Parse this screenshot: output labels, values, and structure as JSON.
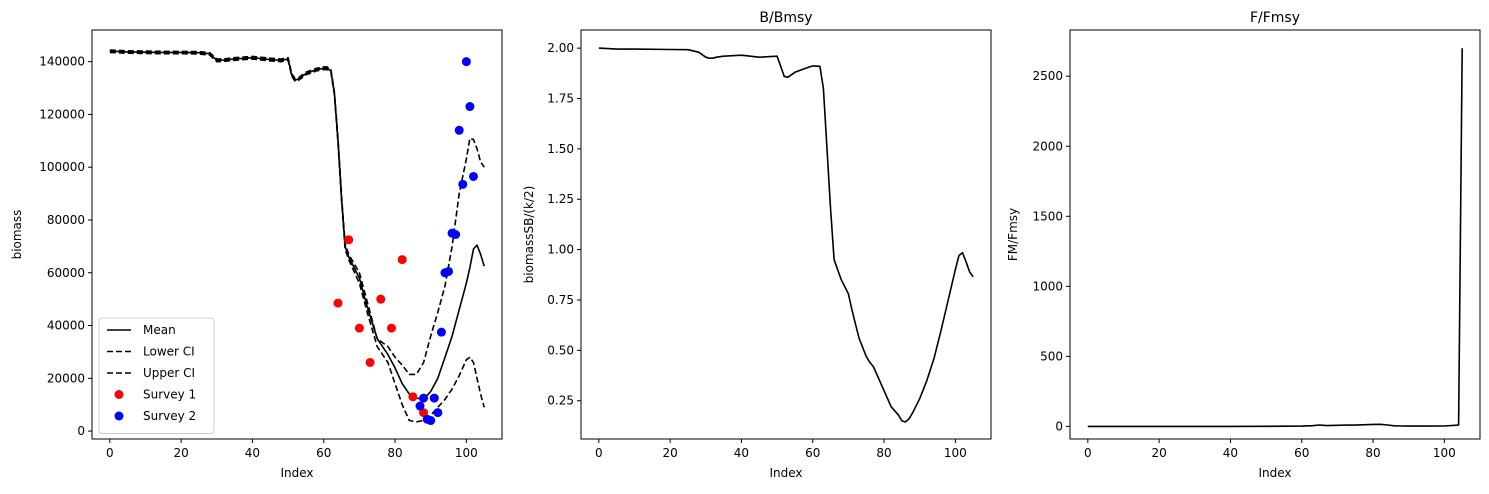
{
  "chart_data": [
    {
      "type": "line",
      "title": "",
      "xlabel": "Index",
      "ylabel": "biomass",
      "xlim": [
        -5,
        110
      ],
      "ylim": [
        -3000,
        152000
      ],
      "xticks": [
        0,
        20,
        40,
        60,
        80,
        100
      ],
      "yticks": [
        0,
        20000,
        40000,
        60000,
        80000,
        100000,
        120000,
        140000
      ],
      "legend_position": "lower-left",
      "series": [
        {
          "name": "Mean",
          "style": "solid",
          "color": "#000000",
          "x": [
            0,
            5,
            10,
            15,
            20,
            25,
            28,
            30,
            32,
            35,
            40,
            45,
            48,
            50,
            51,
            52,
            53,
            55,
            58,
            60,
            61,
            62,
            63,
            64,
            65,
            66,
            67,
            70,
            72,
            75,
            78,
            80,
            82,
            84,
            86,
            88,
            90,
            92,
            94,
            96,
            98,
            100,
            101,
            102,
            103,
            104,
            105
          ],
          "y": [
            144000,
            143700,
            143600,
            143500,
            143500,
            143400,
            143000,
            140500,
            140600,
            141000,
            141500,
            140800,
            140500,
            141000,
            135000,
            133000,
            133500,
            135500,
            137000,
            137500,
            137500,
            136500,
            128000,
            110000,
            88000,
            70000,
            66000,
            58000,
            48000,
            35000,
            29000,
            24000,
            18000,
            14000,
            12500,
            12000,
            15000,
            20000,
            28000,
            36000,
            46000,
            56000,
            62000,
            69000,
            70500,
            67000,
            62500
          ]
        },
        {
          "name": "Lower CI",
          "style": "dashed",
          "color": "#000000",
          "x": [
            0,
            5,
            10,
            15,
            20,
            25,
            28,
            30,
            32,
            35,
            40,
            45,
            48,
            50,
            51,
            52,
            53,
            55,
            58,
            60,
            61,
            62,
            63,
            64,
            65,
            66,
            67,
            70,
            72,
            75,
            78,
            80,
            82,
            84,
            86,
            88,
            90,
            92,
            94,
            96,
            98,
            100,
            101,
            102,
            103,
            104,
            105
          ],
          "y": [
            143500,
            143200,
            143100,
            143000,
            143000,
            142900,
            142500,
            140000,
            140100,
            140500,
            141000,
            140300,
            140000,
            140500,
            134500,
            132500,
            133000,
            135000,
            136500,
            137000,
            137000,
            136000,
            127500,
            109000,
            87000,
            69000,
            65000,
            56000,
            46000,
            32000,
            26000,
            18000,
            10000,
            4000,
            3500,
            4000,
            6000,
            9000,
            12000,
            16000,
            21000,
            27000,
            28000,
            26000,
            20000,
            14000,
            9000
          ]
        },
        {
          "name": "Upper CI",
          "style": "dashed",
          "color": "#000000",
          "x": [
            0,
            5,
            10,
            15,
            20,
            25,
            28,
            30,
            32,
            35,
            40,
            45,
            48,
            50,
            51,
            52,
            53,
            55,
            58,
            60,
            61,
            62,
            63,
            64,
            65,
            66,
            67,
            70,
            72,
            75,
            78,
            80,
            82,
            84,
            86,
            88,
            90,
            92,
            94,
            96,
            98,
            100,
            101,
            102,
            103,
            104,
            105
          ],
          "y": [
            144400,
            144100,
            144000,
            143900,
            143900,
            143800,
            143400,
            141000,
            141100,
            141500,
            142000,
            141300,
            141000,
            141500,
            135500,
            133500,
            134000,
            136000,
            137500,
            138000,
            138000,
            137000,
            128500,
            111000,
            89000,
            71000,
            67000,
            60000,
            50000,
            35000,
            32000,
            28000,
            25000,
            21500,
            21500,
            26000,
            36000,
            45000,
            55000,
            70000,
            90000,
            103000,
            111000,
            110500,
            107000,
            102000,
            100000
          ]
        },
        {
          "name": "Survey 1",
          "style": "scatter",
          "color": "#ff0000",
          "x": [
            64,
            67,
            70,
            73,
            76,
            79,
            82,
            85,
            88
          ],
          "y": [
            48500,
            72500,
            39000,
            26000,
            50000,
            39000,
            65000,
            13000,
            7000
          ]
        },
        {
          "name": "Survey 2",
          "style": "scatter",
          "color": "#0000ff",
          "x": [
            87,
            88,
            89,
            90,
            91,
            92,
            93,
            94,
            95,
            96,
            97,
            98,
            99,
            100,
            101,
            102
          ],
          "y": [
            9500,
            12500,
            4500,
            4000,
            12500,
            7000,
            37500,
            60000,
            60500,
            75000,
            74500,
            114000,
            93500,
            140000,
            123000,
            96500
          ]
        }
      ]
    },
    {
      "type": "line",
      "title": "B/Bmsy",
      "xlabel": "Index",
      "ylabel": "biomassSB/(k/2)",
      "xlim": [
        -5,
        110
      ],
      "ylim": [
        0.06,
        2.09
      ],
      "xticks": [
        0,
        20,
        40,
        60,
        80,
        100
      ],
      "yticks": [
        0.25,
        0.5,
        0.75,
        1.0,
        1.25,
        1.5,
        1.75,
        2.0
      ],
      "ytick_labels": [
        "0.25",
        "0.50",
        "0.75",
        "1.00",
        "1.25",
        "1.50",
        "1.75",
        "2.00"
      ],
      "series": [
        {
          "name": "",
          "style": "solid",
          "color": "#000000",
          "x": [
            0,
            5,
            10,
            20,
            25,
            28,
            30,
            31,
            32,
            33,
            35,
            40,
            45,
            48,
            50,
            51,
            52,
            53,
            55,
            58,
            60,
            62,
            63,
            64,
            65,
            66,
            67,
            68,
            70,
            71,
            72,
            73,
            75,
            76,
            77,
            78,
            80,
            82,
            84,
            85,
            86,
            87,
            88,
            90,
            92,
            94,
            96,
            98,
            100,
            101,
            102,
            103,
            104,
            105
          ],
          "y": [
            2.0,
            1.995,
            1.995,
            1.993,
            1.992,
            1.98,
            1.955,
            1.95,
            1.95,
            1.955,
            1.96,
            1.965,
            1.955,
            1.958,
            1.96,
            1.91,
            1.86,
            1.855,
            1.88,
            1.9,
            1.912,
            1.91,
            1.8,
            1.5,
            1.2,
            0.95,
            0.9,
            0.85,
            0.78,
            0.7,
            0.63,
            0.56,
            0.47,
            0.44,
            0.42,
            0.38,
            0.3,
            0.22,
            0.18,
            0.15,
            0.145,
            0.16,
            0.19,
            0.26,
            0.35,
            0.46,
            0.6,
            0.75,
            0.9,
            0.97,
            0.985,
            0.94,
            0.89,
            0.865
          ]
        }
      ]
    },
    {
      "type": "line",
      "title": "F/Fmsy",
      "xlabel": "Index",
      "ylabel": "FM/Fmsy",
      "xlim": [
        -5,
        110
      ],
      "ylim": [
        -90,
        2830
      ],
      "xticks": [
        0,
        20,
        40,
        60,
        80,
        100
      ],
      "yticks": [
        0,
        500,
        1000,
        1500,
        2000,
        2500
      ],
      "series": [
        {
          "name": "",
          "style": "solid",
          "color": "#000000",
          "x": [
            0,
            10,
            20,
            30,
            40,
            50,
            60,
            63,
            65,
            67,
            70,
            73,
            75,
            78,
            80,
            82,
            84,
            86,
            88,
            90,
            95,
            100,
            103,
            104,
            105
          ],
          "y": [
            0,
            0,
            0,
            0,
            0,
            1,
            2,
            5,
            10,
            6,
            8,
            10,
            9,
            12,
            14,
            15,
            10,
            4,
            3,
            2,
            2,
            3,
            8,
            10,
            2700
          ]
        }
      ]
    }
  ]
}
